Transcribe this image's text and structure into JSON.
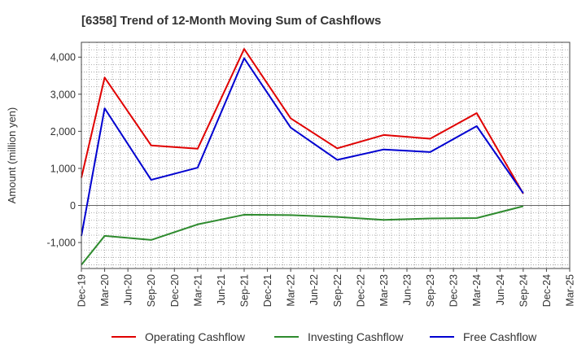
{
  "chart_data": {
    "type": "line",
    "title": "[6358]  Trend of 12-Month Moving Sum of Cashflows",
    "xlabel": "",
    "ylabel": "Amount (million yen)",
    "ylim": [
      -1700,
      4400
    ],
    "yticks": [
      -1000,
      0,
      1000,
      2000,
      3000,
      4000
    ],
    "ytick_labels": [
      "-1,000",
      "0",
      "1,000",
      "2,000",
      "3,000",
      "4,000"
    ],
    "categories": [
      "Dec-19",
      "Mar-20",
      "Jun-20",
      "Sep-20",
      "Dec-20",
      "Mar-21",
      "Jun-21",
      "Sep-21",
      "Dec-21",
      "Mar-22",
      "Jun-22",
      "Sep-22",
      "Dec-22",
      "Mar-23",
      "Jun-23",
      "Sep-23",
      "Dec-23",
      "Mar-24",
      "Jun-24",
      "Sep-24",
      "Dec-24",
      "Mar-25"
    ],
    "grid": true,
    "legend_position": "bottom",
    "series": [
      {
        "name": "Operating Cashflow",
        "color": "#e00000",
        "values": [
          750,
          3450,
          null,
          1620,
          null,
          1530,
          null,
          4220,
          null,
          2350,
          null,
          1540,
          null,
          1900,
          null,
          1800,
          null,
          2490,
          null,
          320,
          null,
          null
        ]
      },
      {
        "name": "Investing Cashflow",
        "color": "#2e8b2e",
        "values": [
          -1600,
          -820,
          null,
          -930,
          null,
          -510,
          null,
          -250,
          null,
          -260,
          null,
          -310,
          null,
          -390,
          null,
          -350,
          null,
          -340,
          null,
          -20,
          null,
          null
        ]
      },
      {
        "name": "Free Cashflow",
        "color": "#0000d0",
        "values": [
          -820,
          2620,
          null,
          690,
          null,
          1020,
          null,
          3970,
          null,
          2100,
          null,
          1230,
          null,
          1510,
          null,
          1440,
          null,
          2140,
          null,
          330,
          null,
          null
        ]
      }
    ]
  }
}
